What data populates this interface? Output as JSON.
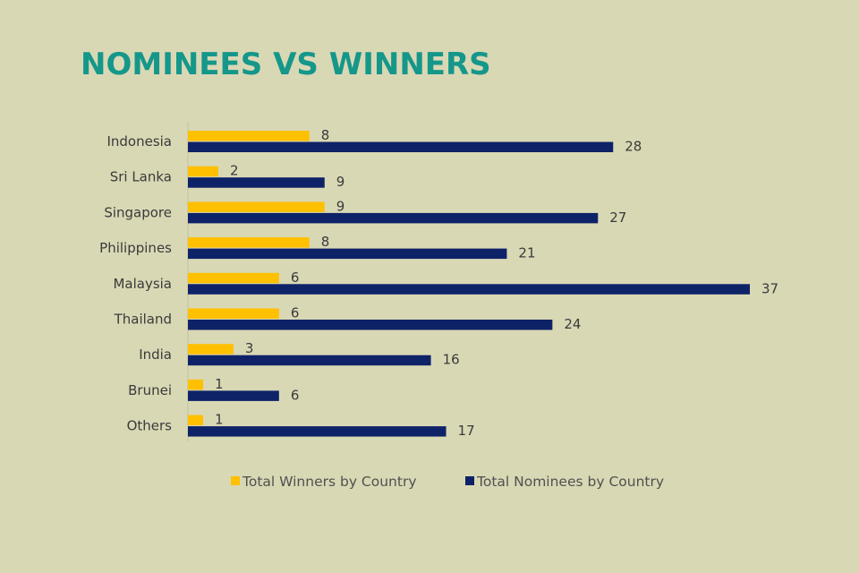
{
  "chart_data": {
    "type": "bar",
    "orientation": "horizontal",
    "title": "NOMINEES VS WINNERS",
    "categories": [
      "Indonesia",
      "Sri Lanka",
      "Singapore",
      "Philippines",
      "Malaysia",
      "Thailand",
      "India",
      "Brunei",
      "Others"
    ],
    "series": [
      {
        "name": "Total Winners by Country",
        "color": "#ffc000",
        "values": [
          8,
          2,
          9,
          8,
          6,
          6,
          3,
          1,
          1
        ]
      },
      {
        "name": "Total Nominees by Country",
        "color": "#0e2268",
        "values": [
          28,
          9,
          27,
          21,
          37,
          24,
          16,
          6,
          17
        ]
      }
    ],
    "xlim": [
      0,
      37
    ],
    "grid": false,
    "legend": "bottom",
    "data_labels": true
  }
}
